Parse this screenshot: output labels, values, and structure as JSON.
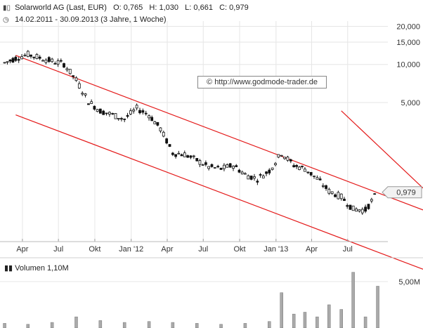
{
  "header": {
    "icon": "bar-chart-icon",
    "title": "Solarworld AG (Last, EUR)",
    "ohlc": "O: 0,765   H: 1,030   L: 0,661   C: 0,979",
    "clock_icon": "clock-icon",
    "range": "14.02.2011 - 30.09.2013 (3 Jahre, 1 Woche)"
  },
  "watermark": "© http://www.godmode-trader.de",
  "volume_label": "Volumen  1,10M",
  "colors": {
    "candles": "#111111",
    "channel": "#e41a1a",
    "volume": "#aaaaaa",
    "grid": "#e6e6e6"
  },
  "chart_data": [
    {
      "type": "line",
      "title": "Solarworld AG (Last, EUR)",
      "y_scale": "log",
      "ylim": [
        0.42,
        22
      ],
      "y_ticks": [
        {
          "value": 20,
          "label": "20,000"
        },
        {
          "value": 15,
          "label": "15,000"
        },
        {
          "value": 10,
          "label": "10,000"
        },
        {
          "value": 5,
          "label": "5,000"
        }
      ],
      "x_range": [
        "2011-02-14",
        "2013-09-30"
      ],
      "x_ticks": [
        "Apr",
        "Jul",
        "Okt",
        "Jan '12",
        "Apr",
        "Jul",
        "Okt",
        "Jan '13",
        "Apr",
        "Jul"
      ],
      "last_value_label": "0,979",
      "last_value": 0.979,
      "series": [
        {
          "x": [
            "2011-02",
            "2011-03",
            "2011-04",
            "2011-05",
            "2011-06",
            "2011-07",
            "2011-08",
            "2011-09",
            "2011-10",
            "2011-11",
            "2011-12",
            "2012-01",
            "2012-02",
            "2012-03",
            "2012-04",
            "2012-05",
            "2012-06",
            "2012-07",
            "2012-08",
            "2012-09",
            "2012-10",
            "2012-11",
            "2012-12",
            "2013-01",
            "2013-02",
            "2013-03",
            "2013-04",
            "2013-05",
            "2013-06",
            "2013-07",
            "2013-08",
            "2013-09"
          ],
          "values": [
            10.3,
            11.2,
            12.0,
            11.3,
            10.6,
            10.1,
            7.5,
            5.1,
            4.3,
            4.0,
            3.7,
            4.5,
            4.0,
            3.1,
            2.0,
            1.95,
            1.75,
            1.55,
            1.5,
            1.6,
            1.35,
            1.25,
            1.45,
            2.0,
            1.6,
            1.5,
            1.25,
            1.0,
            0.9,
            0.72,
            0.71,
            0.979
          ]
        }
      ],
      "channel_lines": [
        {
          "from": [
            "2011-03",
            11.8
          ],
          "to": [
            "2013-09",
            0.97
          ]
        },
        {
          "from": [
            "2011-03",
            4.0
          ],
          "to": [
            "2013-09",
            0.33
          ]
        },
        {
          "from": [
            "2013-06",
            4.3
          ],
          "to": [
            "2013-09",
            2.3
          ]
        }
      ]
    },
    {
      "type": "bar",
      "title": "Volumen",
      "ylim": [
        0,
        6.2
      ],
      "y_ticks": [
        {
          "value": 5,
          "label": "5,00M"
        }
      ],
      "x": [
        "2011-02",
        "2011-04",
        "2011-06",
        "2011-08",
        "2011-10",
        "2011-12",
        "2012-02",
        "2012-04",
        "2012-06",
        "2012-08",
        "2012-10",
        "2012-12",
        "2013-01",
        "2013-02",
        "2013-03",
        "2013-04",
        "2013-05",
        "2013-06",
        "2013-07",
        "2013-08",
        "2013-09"
      ],
      "values": [
        0.5,
        0.4,
        0.6,
        1.2,
        0.8,
        0.6,
        0.7,
        0.6,
        0.5,
        0.4,
        0.5,
        0.7,
        3.8,
        1.5,
        1.7,
        1.2,
        2.5,
        2.0,
        6.0,
        1.2,
        4.5
      ]
    }
  ]
}
